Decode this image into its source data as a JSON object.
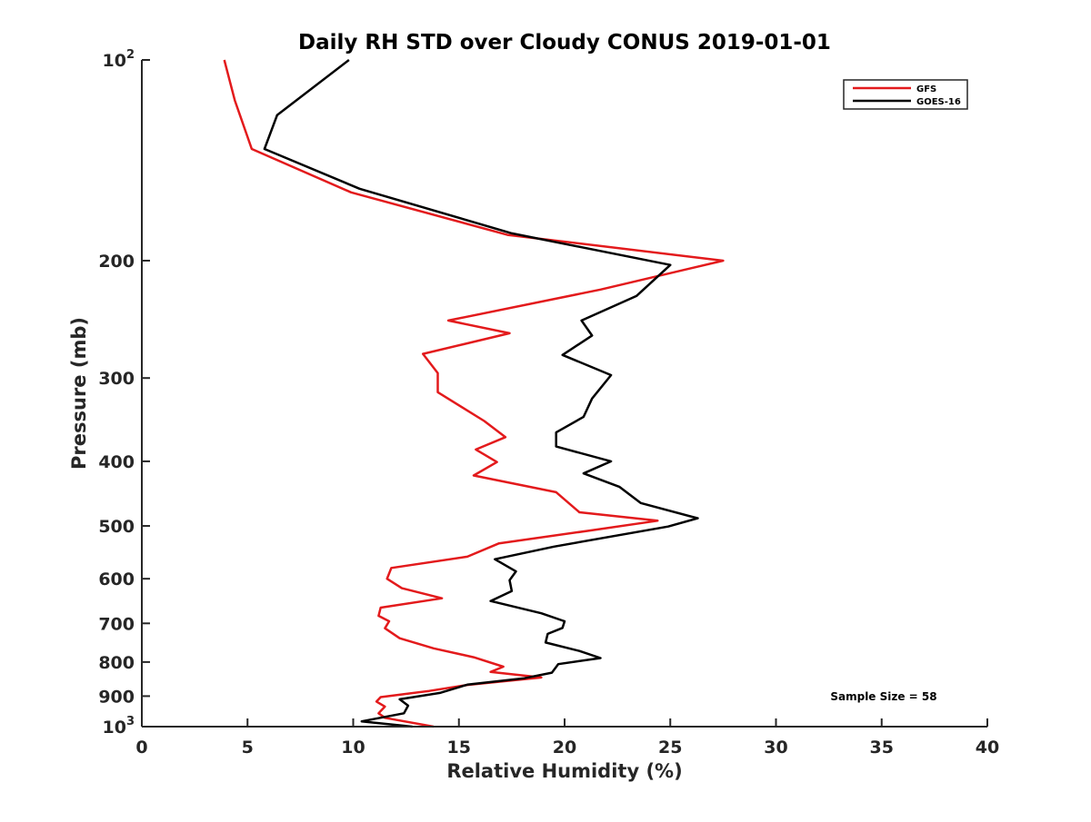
{
  "chart_data": {
    "type": "line",
    "title": "Daily RH STD over Cloudy CONUS 2019-01-01",
    "xlabel": "Relative Humidity (%)",
    "ylabel": "Pressure (mb)",
    "xlim": [
      0,
      40
    ],
    "ylim": [
      100,
      1000
    ],
    "y_scale": "log",
    "y_reversed": false,
    "x_ticks": [
      0,
      5,
      10,
      15,
      20,
      25,
      30,
      35,
      40
    ],
    "x_tick_labels": [
      "0",
      "5",
      "10",
      "15",
      "20",
      "25",
      "30",
      "35",
      "40"
    ],
    "y_ticks": [
      {
        "value": 100,
        "base": "10",
        "exp": "2"
      },
      {
        "value": 200,
        "label": "200"
      },
      {
        "value": 300,
        "label": "300"
      },
      {
        "value": 400,
        "label": "400"
      },
      {
        "value": 500,
        "label": "500"
      },
      {
        "value": 600,
        "label": "600"
      },
      {
        "value": 700,
        "label": "700"
      },
      {
        "value": 800,
        "label": "800"
      },
      {
        "value": 900,
        "label": "900"
      },
      {
        "value": 1000,
        "base": "10",
        "exp": "3"
      }
    ],
    "grid": false,
    "legend_position": "top-right",
    "annotation": "Sample Size = 58",
    "series": [
      {
        "name": "GFS",
        "color": "#e31a1c",
        "points": [
          [
            3.9,
            100
          ],
          [
            4.4,
            115
          ],
          [
            5.2,
            136
          ],
          [
            9.9,
            158
          ],
          [
            17.3,
            183
          ],
          [
            27.5,
            200
          ],
          [
            21.7,
            221
          ],
          [
            14.5,
            246
          ],
          [
            17.4,
            257
          ],
          [
            13.3,
            276
          ],
          [
            14.0,
            295
          ],
          [
            14.0,
            315
          ],
          [
            16.2,
            348
          ],
          [
            17.2,
            368
          ],
          [
            15.8,
            384
          ],
          [
            16.8,
            401
          ],
          [
            15.7,
            420
          ],
          [
            19.6,
            445
          ],
          [
            20.7,
            477
          ],
          [
            24.4,
            491
          ],
          [
            21.2,
            508
          ],
          [
            16.9,
            531
          ],
          [
            15.4,
            556
          ],
          [
            11.8,
            578
          ],
          [
            11.6,
            600
          ],
          [
            12.3,
            620
          ],
          [
            14.2,
            642
          ],
          [
            11.3,
            663
          ],
          [
            11.2,
            682
          ],
          [
            11.7,
            695
          ],
          [
            11.5,
            712
          ],
          [
            12.2,
            737
          ],
          [
            13.8,
            763
          ],
          [
            15.7,
            787
          ],
          [
            17.1,
            813
          ],
          [
            16.5,
            828
          ],
          [
            18.9,
            844
          ],
          [
            15.4,
            866
          ],
          [
            13.6,
            884
          ],
          [
            11.3,
            903
          ],
          [
            11.1,
            917
          ],
          [
            11.5,
            933
          ],
          [
            11.2,
            955
          ],
          [
            11.5,
            970
          ],
          [
            13.8,
            1000
          ]
        ]
      },
      {
        "name": "GOES-16",
        "color": "#000000",
        "points": [
          [
            9.8,
            100
          ],
          [
            6.4,
            121
          ],
          [
            5.8,
            136
          ],
          [
            10.3,
            156
          ],
          [
            17.5,
            182
          ],
          [
            25.0,
            203
          ],
          [
            23.4,
            226
          ],
          [
            20.8,
            246
          ],
          [
            21.3,
            259
          ],
          [
            19.9,
            277
          ],
          [
            22.2,
            297
          ],
          [
            21.3,
            322
          ],
          [
            20.9,
            343
          ],
          [
            19.6,
            362
          ],
          [
            19.6,
            380
          ],
          [
            22.2,
            400
          ],
          [
            20.9,
            417
          ],
          [
            22.6,
            437
          ],
          [
            23.6,
            462
          ],
          [
            26.3,
            487
          ],
          [
            24.9,
            501
          ],
          [
            19.5,
            537
          ],
          [
            16.7,
            561
          ],
          [
            17.7,
            585
          ],
          [
            17.4,
            603
          ],
          [
            17.5,
            626
          ],
          [
            16.5,
            648
          ],
          [
            18.9,
            676
          ],
          [
            20.0,
            695
          ],
          [
            19.9,
            711
          ],
          [
            19.2,
            726
          ],
          [
            19.1,
            748
          ],
          [
            20.7,
            770
          ],
          [
            21.7,
            789
          ],
          [
            19.7,
            806
          ],
          [
            19.4,
            830
          ],
          [
            18.1,
            846
          ],
          [
            15.4,
            865
          ],
          [
            14.1,
            890
          ],
          [
            12.2,
            910
          ],
          [
            12.6,
            930
          ],
          [
            12.4,
            955
          ],
          [
            10.4,
            982
          ],
          [
            12.8,
            1000
          ]
        ]
      }
    ]
  }
}
